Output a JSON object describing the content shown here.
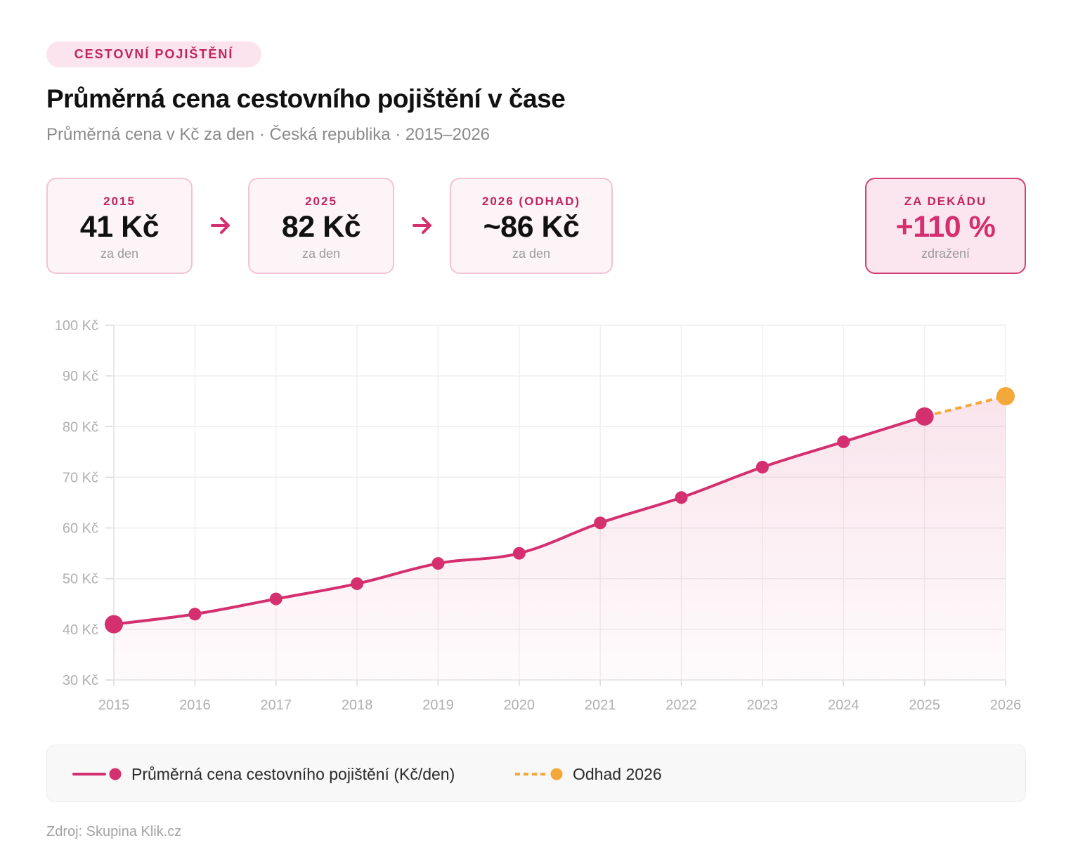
{
  "tag": "CESTOVNÍ POJIŠTĚNÍ",
  "title": "Průměrná cena cestovního pojištění v čase",
  "subtitle": "Průměrná cena v Kč za den · Česká republika · 2015–2026",
  "stats": [
    {
      "label": "2015",
      "value": "41 Kč",
      "sub": "za den"
    },
    {
      "label": "2025",
      "value": "82 Kč",
      "sub": "za den"
    },
    {
      "label": "2026 (ODHAD)",
      "value": "~86 Kč",
      "sub": "za den"
    },
    {
      "label": "ZA DEKÁDU",
      "value": "+110 %",
      "sub": "zdražení"
    }
  ],
  "colors": {
    "accent": "#d42f6e",
    "forecast": "#f5a83a",
    "tag_bg": "#fbe4ee",
    "card_border": "#f2c3d6"
  },
  "icons": {
    "stat_arrow": "arrow-right-icon"
  },
  "chart_data": {
    "type": "line",
    "x": [
      "2015",
      "2016",
      "2017",
      "2018",
      "2019",
      "2020",
      "2021",
      "2022",
      "2023",
      "2024",
      "2025",
      "2026"
    ],
    "series": [
      {
        "name": "Průměrná cena cestovního pojištění (Kč/den)",
        "values": [
          41,
          43,
          46,
          49,
          53,
          55,
          61,
          66,
          72,
          77,
          82,
          null
        ],
        "color": "#d42f6e",
        "style": "solid",
        "area": true
      },
      {
        "name": "Odhad 2026",
        "values": [
          null,
          null,
          null,
          null,
          null,
          null,
          null,
          null,
          null,
          null,
          82,
          86
        ],
        "color": "#f5a83a",
        "style": "dashed"
      }
    ],
    "y_ticks": [
      "30 Kč",
      "40 Kč",
      "50 Kč",
      "60 Kč",
      "70 Kč",
      "80 Kč",
      "90 Kč",
      "100 Kč"
    ],
    "ylim": [
      30,
      100
    ],
    "grid": true,
    "legend_position": "bottom"
  },
  "legend": {
    "main_label": "Průměrná cena cestovního pojištění (Kč/den)",
    "forecast_label": "Odhad 2026"
  },
  "source": "Zdroj: Skupina Klik.cz"
}
